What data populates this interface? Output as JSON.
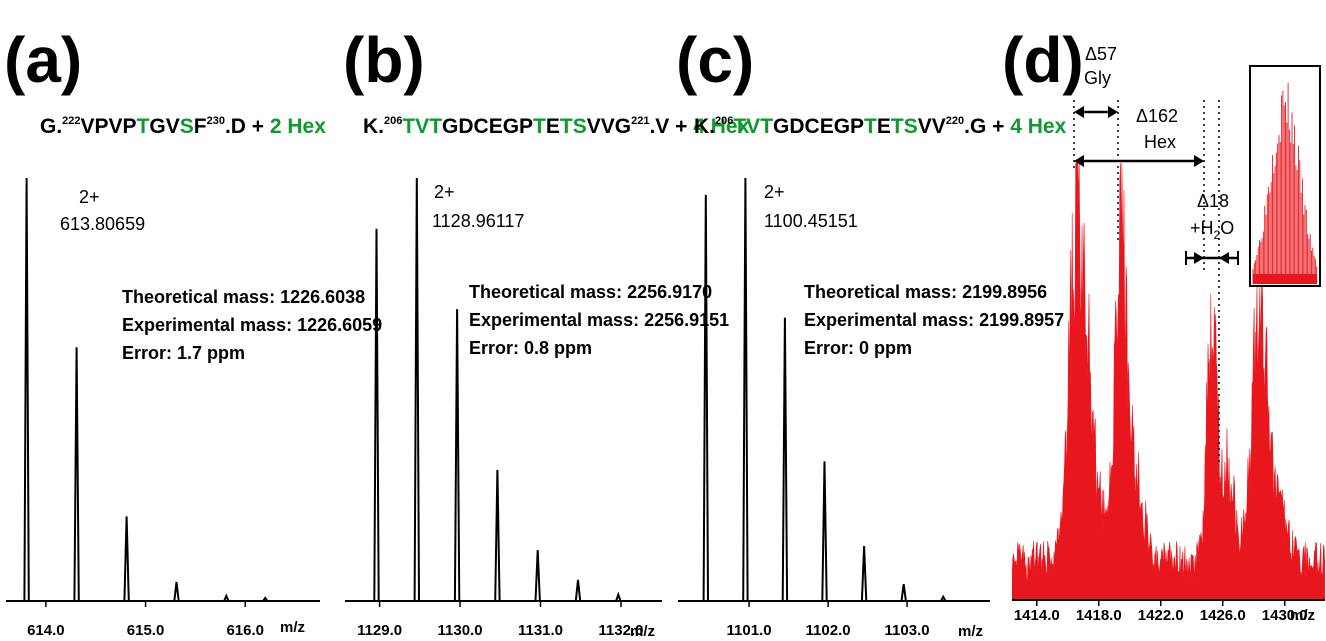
{
  "chart_data": [
    {
      "type": "line",
      "panel_label": "(a)",
      "sequence": [
        {
          "t": "G."
        },
        {
          "t": "222",
          "sup": true
        },
        {
          "t": "VPVP"
        },
        {
          "t": "T",
          "g": true
        },
        {
          "t": "GV"
        },
        {
          "t": "S",
          "g": true
        },
        {
          "t": "F"
        },
        {
          "t": "230",
          "sup": true
        },
        {
          "t": ".D + "
        },
        {
          "t": "2 Hex",
          "g": true
        }
      ],
      "charge": "2+",
      "peak_mz": "613.80659",
      "info": [
        "Theoretical mass: 1226.6038",
        "Experimental mass: 1226.6059",
        "Error: 1.7 ppm"
      ],
      "xlim": [
        613.6,
        616.75
      ],
      "ylim": [
        0,
        100
      ],
      "x_ticks": [
        "614.0",
        "615.0",
        "616.0"
      ],
      "x_ticks_values": [
        614.0,
        615.0,
        616.0
      ],
      "xlabel": "m/z",
      "peaks": [
        {
          "x": 613.807,
          "y": 100
        },
        {
          "x": 614.308,
          "y": 60
        },
        {
          "x": 614.81,
          "y": 20
        },
        {
          "x": 615.31,
          "y": 4.5
        },
        {
          "x": 615.81,
          "y": 1.2
        },
        {
          "x": 616.2,
          "y": 0.7
        }
      ]
    },
    {
      "type": "line",
      "panel_label": "(b)",
      "sequence": [
        {
          "t": "K."
        },
        {
          "t": "206",
          "sup": true
        },
        {
          "t": "TV",
          "g": true
        },
        {
          "t": "T",
          "g": true
        },
        {
          "t": "GDCEGP"
        },
        {
          "t": "T",
          "g": true
        },
        {
          "t": "E"
        },
        {
          "t": "TS",
          "g": true
        },
        {
          "t": "VVG"
        },
        {
          "t": "221",
          "sup": true
        },
        {
          "t": ".V + "
        },
        {
          "t": "4 Hex",
          "g": true
        }
      ],
      "charge": "2+",
      "peak_mz": "1128.96117",
      "info": [
        "Theoretical mass: 2256.9170",
        "Experimental mass: 2256.9151",
        "Error: 0.8 ppm"
      ],
      "xlim": [
        1128.57,
        1132.51
      ],
      "ylim": [
        0,
        100
      ],
      "x_ticks": [
        "1129.0",
        "1130.0",
        "1131.0",
        "1132.0"
      ],
      "x_ticks_values": [
        1129.0,
        1130.0,
        1131.0,
        1132.0
      ],
      "xlabel": "m/z",
      "peaks": [
        {
          "x": 1128.961,
          "y": 88
        },
        {
          "x": 1129.462,
          "y": 100
        },
        {
          "x": 1129.963,
          "y": 69
        },
        {
          "x": 1130.464,
          "y": 31
        },
        {
          "x": 1130.965,
          "y": 12
        },
        {
          "x": 1131.466,
          "y": 5
        },
        {
          "x": 1131.967,
          "y": 1.5
        }
      ]
    },
    {
      "type": "line",
      "panel_label": "(c)",
      "sequence": [
        {
          "t": "K."
        },
        {
          "t": "206",
          "sup": true
        },
        {
          "t": "TV",
          "g": true
        },
        {
          "t": "T",
          "g": true
        },
        {
          "t": "GDCEGP"
        },
        {
          "t": "T",
          "g": true
        },
        {
          "t": "E"
        },
        {
          "t": "TS",
          "g": true
        },
        {
          "t": "VV"
        },
        {
          "t": "220",
          "sup": true
        },
        {
          "t": ".G + "
        },
        {
          "t": "4 Hex",
          "g": true
        }
      ],
      "charge": "2+",
      "peak_mz": "1100.45151",
      "info": [
        "Theoretical mass: 2199.8956",
        "Experimental mass: 2199.8957",
        "Error: 0 ppm"
      ],
      "xlim": [
        1100.1,
        1104.05
      ],
      "ylim": [
        0,
        100
      ],
      "x_ticks": [
        "1101.0",
        "1102.0",
        "1103.0"
      ],
      "x_ticks_values": [
        1101.0,
        1102.0,
        1103.0
      ],
      "xlabel": "m/z",
      "peaks": [
        {
          "x": 1100.452,
          "y": 96
        },
        {
          "x": 1100.953,
          "y": 100
        },
        {
          "x": 1101.454,
          "y": 67
        },
        {
          "x": 1101.955,
          "y": 33
        },
        {
          "x": 1102.456,
          "y": 13
        },
        {
          "x": 1102.957,
          "y": 4
        },
        {
          "x": 1103.458,
          "y": 1
        }
      ]
    },
    {
      "type": "area",
      "panel_label": "(d)",
      "color": "#e8171d",
      "xlim": [
        1412.4,
        1432.6
      ],
      "ylim": [
        0,
        100
      ],
      "x_ticks": [
        "1414.0",
        "1418.0",
        "1422.0",
        "1426.0",
        "1430.0"
      ],
      "x_ticks_values": [
        1414.0,
        1418.0,
        1422.0,
        1426.0,
        1430.0
      ],
      "xlabel": "m/z",
      "baseline": 11,
      "peaks": [
        {
          "x": 1416.6,
          "y": 100,
          "w": 0.5
        },
        {
          "x": 1417.4,
          "y": 34,
          "w": 0.6
        },
        {
          "x": 1419.4,
          "y": 85,
          "w": 0.35
        },
        {
          "x": 1420.0,
          "y": 30,
          "w": 0.7
        },
        {
          "x": 1425.3,
          "y": 76,
          "w": 0.3
        },
        {
          "x": 1426.35,
          "y": 28,
          "w": 0.45
        },
        {
          "x": 1428.3,
          "y": 67,
          "w": 0.45
        },
        {
          "x": 1429.2,
          "y": 23,
          "w": 0.7
        }
      ],
      "annotations": {
        "gly": {
          "delta": "Δ57",
          "label": "Gly"
        },
        "hex": {
          "delta": "Δ162",
          "label": "Hex"
        },
        "water": {
          "delta": "Δ18",
          "label": "+H",
          "sub": "2",
          "tail": "O"
        }
      }
    }
  ]
}
